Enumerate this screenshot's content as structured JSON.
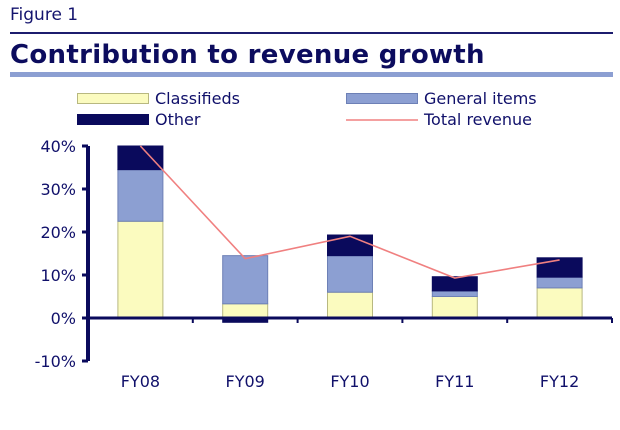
{
  "figure_label": "Figure 1",
  "chart_data": {
    "type": "bar",
    "stacked": true,
    "title": "Contribution to revenue growth",
    "categories": [
      "FY08",
      "FY09",
      "FY10",
      "FY11",
      "FY12"
    ],
    "series": [
      {
        "name": "Classifieds",
        "type": "bar",
        "color": "#fbfbbf",
        "values": [
          22.5,
          3.3,
          6,
          5,
          7
        ]
      },
      {
        "name": "General items",
        "type": "bar",
        "color": "#8c9fd2",
        "values": [
          12,
          11.2,
          8.5,
          1.3,
          2.5
        ]
      },
      {
        "name": "Other",
        "type": "bar",
        "color": "#0a0a5c",
        "values": [
          5.5,
          -1,
          4.8,
          3.3,
          4.5
        ]
      },
      {
        "name": "Total revenue",
        "type": "line",
        "color": "#f08080",
        "values": [
          40,
          13.8,
          19,
          9.3,
          13.5
        ]
      }
    ],
    "ylim": [
      -10,
      40
    ],
    "yticks": [
      "40%",
      "30%",
      "20%",
      "10%",
      "0%",
      "-10%"
    ],
    "ytick_values": [
      40,
      30,
      20,
      10,
      0,
      -10
    ],
    "grid": false,
    "legend_placement": "top"
  }
}
